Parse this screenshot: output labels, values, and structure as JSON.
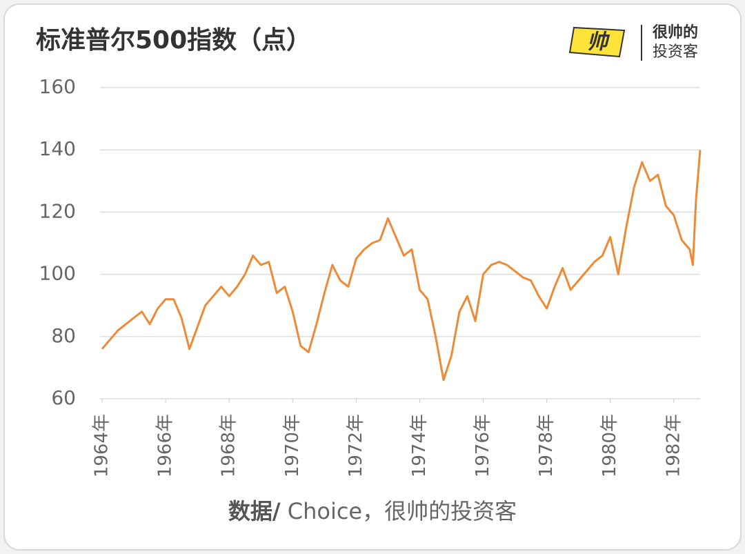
{
  "chart_data": {
    "type": "line",
    "title": "标准普尔500指数（点）",
    "brand": [
      "很帅的",
      "投资客"
    ],
    "source_label": "数据/",
    "source": " Choice，很帅的投资客",
    "ylim": [
      60,
      160
    ],
    "yticks": [
      60,
      80,
      100,
      120,
      140,
      160
    ],
    "grid": true,
    "xlim": [
      1964,
      1982.83
    ],
    "xticks": [
      {
        "value": 1964,
        "label": "1964年"
      },
      {
        "value": 1966,
        "label": "1966年"
      },
      {
        "value": 1968,
        "label": "1968年"
      },
      {
        "value": 1970,
        "label": "1970年"
      },
      {
        "value": 1972,
        "label": "1972年"
      },
      {
        "value": 1974,
        "label": "1974年"
      },
      {
        "value": 1976,
        "label": "1976年"
      },
      {
        "value": 1978,
        "label": "1978年"
      },
      {
        "value": 1980,
        "label": "1980年"
      },
      {
        "value": 1982,
        "label": "1982年"
      }
    ],
    "x": [
      1964.0,
      1964.25,
      1964.5,
      1964.75,
      1965.0,
      1965.25,
      1965.5,
      1965.75,
      1966.0,
      1966.25,
      1966.5,
      1966.75,
      1967.0,
      1967.25,
      1967.5,
      1967.75,
      1968.0,
      1968.25,
      1968.5,
      1968.75,
      1969.0,
      1969.25,
      1969.5,
      1969.75,
      1970.0,
      1970.25,
      1970.5,
      1970.75,
      1971.0,
      1971.25,
      1971.5,
      1971.75,
      1972.0,
      1972.25,
      1972.5,
      1972.75,
      1973.0,
      1973.25,
      1973.5,
      1973.75,
      1974.0,
      1974.25,
      1974.5,
      1974.75,
      1975.0,
      1975.25,
      1975.5,
      1975.75,
      1976.0,
      1976.25,
      1976.5,
      1976.75,
      1977.0,
      1977.25,
      1977.5,
      1977.75,
      1978.0,
      1978.25,
      1978.5,
      1978.75,
      1979.0,
      1979.25,
      1979.5,
      1979.75,
      1980.0,
      1980.25,
      1980.5,
      1980.75,
      1981.0,
      1981.25,
      1981.5,
      1981.75,
      1982.0,
      1982.25,
      1982.5,
      1982.6,
      1982.7,
      1982.83
    ],
    "series": [
      {
        "color": "#ee8a36",
        "values": [
          76,
          79,
          82,
          84,
          86,
          88,
          84,
          89,
          92,
          92,
          86,
          76,
          83,
          90,
          93,
          96,
          93,
          96,
          100,
          106,
          103,
          104,
          94,
          96,
          88,
          77,
          75,
          84,
          94,
          103,
          98,
          96,
          105,
          108,
          110,
          111,
          118,
          112,
          106,
          108,
          95,
          92,
          80,
          66,
          74,
          88,
          93,
          85,
          100,
          103,
          104,
          103,
          101,
          99,
          98,
          93,
          89,
          96,
          102,
          95,
          98,
          101,
          104,
          106,
          112,
          100,
          115,
          128,
          136,
          130,
          132,
          122,
          119,
          111,
          108,
          103,
          124,
          140
        ]
      }
    ]
  }
}
